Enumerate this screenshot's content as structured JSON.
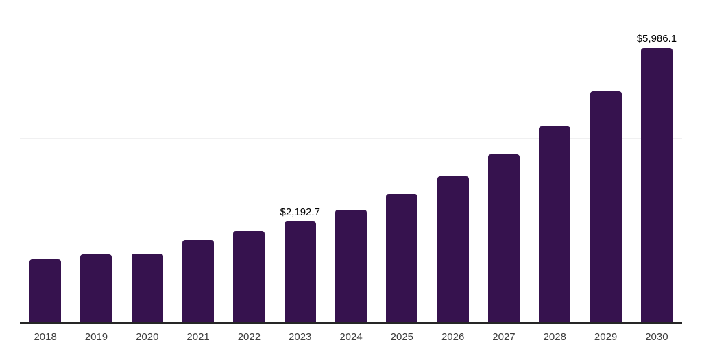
{
  "chart_data": {
    "type": "bar",
    "title": "",
    "xlabel": "",
    "ylabel": "",
    "categories": [
      "2018",
      "2019",
      "2020",
      "2021",
      "2022",
      "2023",
      "2024",
      "2025",
      "2026",
      "2027",
      "2028",
      "2029",
      "2030"
    ],
    "values": [
      1375,
      1480,
      1490,
      1790,
      1985,
      2192.7,
      2460,
      2790,
      3180,
      3670,
      4285,
      5045,
      5986.1
    ],
    "point_labels": [
      "",
      "",
      "",
      "",
      "",
      "$2,192.7",
      "",
      "",
      "",
      "",
      "",
      "",
      "$5,986.1"
    ],
    "ylim": [
      0,
      7000
    ],
    "gridline_interval": 1000,
    "grid": "horizontal-light",
    "y_tick_labels_visible": false,
    "legend": "none",
    "colors": {
      "bar": "#36124E",
      "gridline": "#f0f0f1",
      "axis_line": "#262626",
      "x_tick_label": "#3d3d3d",
      "data_label": "#000000",
      "background": "#ffffff"
    }
  }
}
